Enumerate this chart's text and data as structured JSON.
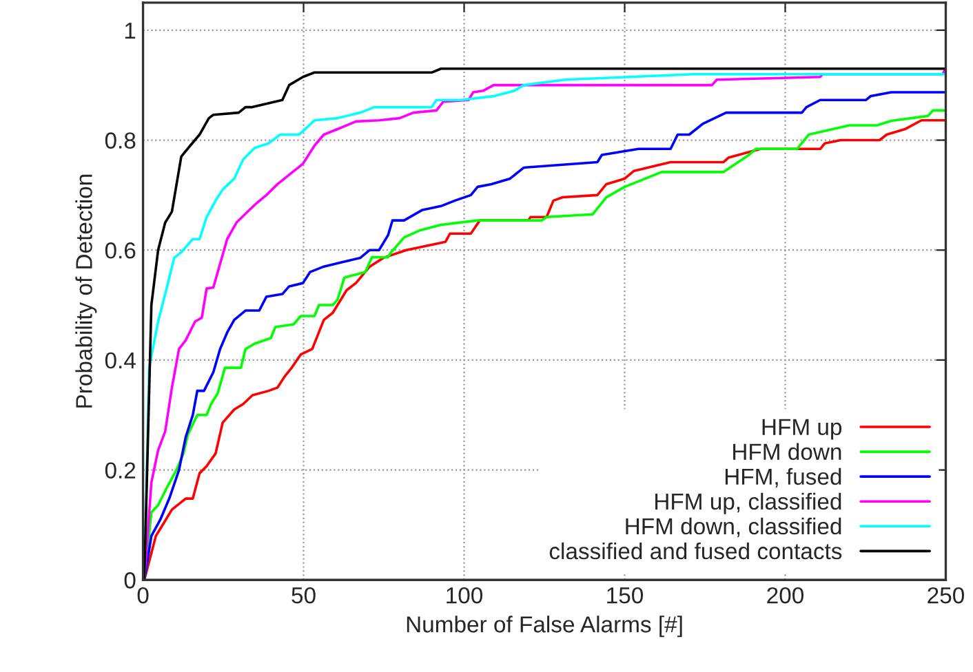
{
  "chart_data": {
    "type": "line",
    "xlabel": "Number of False Alarms [#]",
    "ylabel": "Probability of Detection",
    "xlim": [
      0,
      250
    ],
    "ylim": [
      0,
      1.05
    ],
    "xticks": [
      0,
      50,
      100,
      150,
      200,
      250
    ],
    "yticks": [
      0,
      0.2,
      0.4,
      0.6,
      0.8,
      1
    ],
    "grid": true,
    "legend": "bottom right",
    "line_style": "solid",
    "marker": "none",
    "series": [
      {
        "name": "HFM up",
        "color": "#ff0000",
        "x": [
          0.4,
          4,
          6.1,
          9,
          13.3,
          15.5,
          17.6,
          19.8,
          22.6,
          24.8,
          28.4,
          31.2,
          34.1,
          39.1,
          41.9,
          44.1,
          46.3,
          49.1,
          52.7,
          56.3,
          59.1,
          63.4,
          66.3,
          70.6,
          74.9,
          82,
          94.2,
          95.6,
          102.1,
          104.9,
          120,
          120.7,
          125.7,
          127.8,
          130.7,
          141.5,
          144.3,
          150,
          152.9,
          164.3,
          180.8,
          182.3,
          192.3,
          210.9,
          212.3,
          217.3,
          229.4,
          231.6,
          237.3,
          242.4,
          250
        ],
        "values": [
          0,
          0.08,
          0.1,
          0.128,
          0.148,
          0.148,
          0.194,
          0.207,
          0.23,
          0.286,
          0.31,
          0.32,
          0.336,
          0.344,
          0.35,
          0.37,
          0.386,
          0.41,
          0.42,
          0.473,
          0.486,
          0.527,
          0.54,
          0.57,
          0.586,
          0.6,
          0.615,
          0.63,
          0.63,
          0.654,
          0.654,
          0.66,
          0.66,
          0.69,
          0.696,
          0.7,
          0.72,
          0.73,
          0.744,
          0.76,
          0.76,
          0.768,
          0.784,
          0.784,
          0.794,
          0.8,
          0.8,
          0.81,
          0.82,
          0.836,
          0.836
        ]
      },
      {
        "name": "HFM down",
        "color": "#00ff00",
        "x": [
          0.4,
          2.6,
          4.7,
          7.6,
          10.4,
          12.6,
          14,
          16.9,
          19.8,
          21.2,
          23.3,
          25.5,
          30.5,
          31.9,
          34.8,
          39.8,
          41.2,
          46.9,
          49.1,
          53.4,
          54.8,
          59.1,
          60.6,
          62.7,
          69.2,
          71.3,
          76.3,
          77,
          81.3,
          86.3,
          92.8,
          104.2,
          124.2,
          125.7,
          140,
          144.3,
          150,
          154.3,
          161.5,
          180.8,
          188.7,
          190.8,
          203.7,
          207.3,
          220,
          228.6,
          233,
          244.5,
          246,
          250
        ],
        "values": [
          0,
          0.123,
          0.136,
          0.17,
          0.2,
          0.23,
          0.265,
          0.3,
          0.3,
          0.32,
          0.34,
          0.386,
          0.386,
          0.42,
          0.43,
          0.44,
          0.46,
          0.465,
          0.48,
          0.48,
          0.5,
          0.5,
          0.51,
          0.55,
          0.56,
          0.587,
          0.587,
          0.594,
          0.623,
          0.636,
          0.646,
          0.654,
          0.654,
          0.66,
          0.665,
          0.696,
          0.715,
          0.725,
          0.742,
          0.742,
          0.773,
          0.784,
          0.784,
          0.81,
          0.827,
          0.827,
          0.835,
          0.844,
          0.854,
          0.854
        ]
      },
      {
        "name": "HFM, fused",
        "color": "#0000ff",
        "x": [
          0.4,
          2.6,
          5.4,
          8.3,
          11.2,
          13.3,
          15.5,
          16.9,
          19,
          21.9,
          24,
          26.2,
          28.4,
          31.9,
          36.2,
          38.4,
          43.4,
          45.5,
          49.8,
          52,
          56.3,
          62,
          67.7,
          70.6,
          73.5,
          76.3,
          77.7,
          81.3,
          87,
          92.8,
          97.1,
          102.1,
          104.2,
          108.5,
          114.3,
          118.6,
          141.5,
          142.9,
          154.3,
          164.3,
          166.5,
          170.1,
          174.4,
          181.6,
          205.2,
          206.6,
          210.9,
          225.2,
          226.6,
          233,
          250
        ],
        "values": [
          0,
          0.08,
          0.11,
          0.15,
          0.2,
          0.26,
          0.3,
          0.344,
          0.344,
          0.378,
          0.42,
          0.45,
          0.473,
          0.49,
          0.49,
          0.515,
          0.52,
          0.534,
          0.54,
          0.56,
          0.57,
          0.578,
          0.586,
          0.6,
          0.6,
          0.627,
          0.654,
          0.654,
          0.673,
          0.68,
          0.69,
          0.7,
          0.715,
          0.72,
          0.73,
          0.75,
          0.76,
          0.773,
          0.784,
          0.784,
          0.81,
          0.81,
          0.83,
          0.85,
          0.85,
          0.86,
          0.873,
          0.873,
          0.88,
          0.887,
          0.887
        ]
      },
      {
        "name": "HFM up, classified",
        "color": "#ff00ff",
        "x": [
          0.4,
          2.6,
          4.7,
          6.9,
          9,
          11.2,
          13.3,
          16.2,
          18.3,
          19.8,
          21.9,
          26.2,
          29.1,
          32.6,
          35.5,
          38.4,
          41.9,
          45.5,
          49.8,
          53.4,
          56.3,
          60.6,
          66.3,
          73.5,
          79.9,
          84.2,
          91.4,
          93.5,
          101.4,
          102.8,
          106,
          109.2,
          177.2,
          178.7,
          210.9,
          211.6,
          249,
          250
        ],
        "values": [
          0,
          0.177,
          0.236,
          0.27,
          0.35,
          0.42,
          0.436,
          0.47,
          0.477,
          0.53,
          0.532,
          0.62,
          0.65,
          0.67,
          0.686,
          0.7,
          0.72,
          0.737,
          0.757,
          0.79,
          0.81,
          0.82,
          0.834,
          0.836,
          0.84,
          0.85,
          0.854,
          0.87,
          0.873,
          0.887,
          0.89,
          0.9,
          0.9,
          0.91,
          0.915,
          0.92,
          0.92,
          0.93
        ]
      },
      {
        "name": "HFM down, classified",
        "color": "#00ffff",
        "x": [
          0.4,
          1.9,
          4.7,
          7.6,
          9.7,
          11.9,
          15.5,
          17.6,
          19.8,
          22.6,
          24.8,
          28.4,
          31.2,
          34.8,
          39.1,
          42.7,
          48.5,
          50.5,
          53.4,
          60.6,
          67.7,
          72,
          89.9,
          91.4,
          99.2,
          109.2,
          115.7,
          118.6,
          131.4,
          171.5,
          250
        ],
        "values": [
          0,
          0.386,
          0.47,
          0.536,
          0.586,
          0.596,
          0.62,
          0.62,
          0.66,
          0.69,
          0.71,
          0.73,
          0.765,
          0.786,
          0.794,
          0.81,
          0.81,
          0.82,
          0.836,
          0.84,
          0.85,
          0.86,
          0.86,
          0.873,
          0.873,
          0.88,
          0.89,
          0.9,
          0.91,
          0.92,
          0.92
        ]
      },
      {
        "name": "classified and fused contacts",
        "color": "#000000",
        "x": [
          0.4,
          2.6,
          4.7,
          6.9,
          9,
          11.9,
          14.7,
          17.6,
          20.5,
          21.9,
          29.8,
          31.9,
          34,
          43.4,
          45.5,
          49.8,
          53.4,
          89.9,
          92.8,
          250
        ],
        "values": [
          0,
          0.5,
          0.6,
          0.65,
          0.67,
          0.77,
          0.79,
          0.81,
          0.84,
          0.846,
          0.85,
          0.86,
          0.86,
          0.873,
          0.9,
          0.915,
          0.923,
          0.923,
          0.93,
          0.93
        ]
      }
    ]
  }
}
